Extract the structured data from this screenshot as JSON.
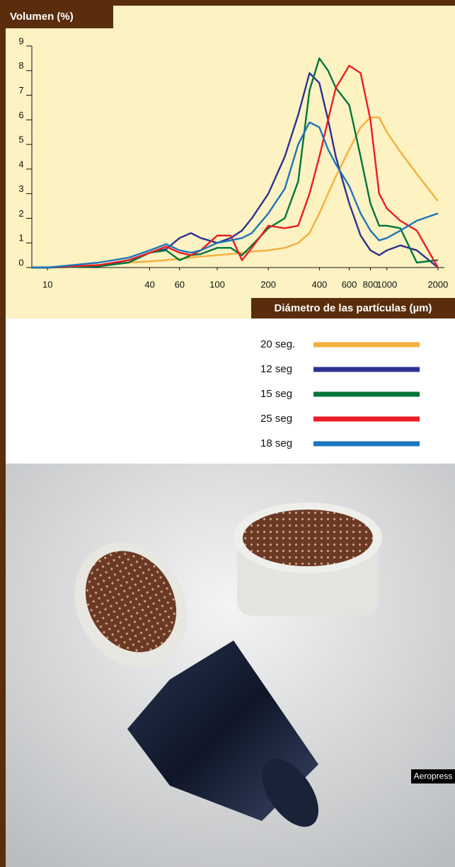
{
  "chart_data": {
    "type": "line",
    "ylabel": "Volumen (%)",
    "xlabel": "Diámetro de las partículas (µm)",
    "xscale": "log",
    "xlim": [
      8,
      2100
    ],
    "ylim": [
      0,
      9
    ],
    "xticks": [
      10,
      40,
      60,
      100,
      200,
      400,
      600,
      800,
      1000,
      2000
    ],
    "yticks": [
      0,
      1,
      2,
      3,
      4,
      5,
      6,
      7,
      8,
      9
    ],
    "grid": false,
    "legend": "below",
    "x": [
      8,
      10,
      20,
      30,
      40,
      50,
      60,
      70,
      80,
      100,
      120,
      140,
      160,
      200,
      250,
      300,
      350,
      400,
      450,
      500,
      600,
      700,
      800,
      900,
      1000,
      1200,
      1500,
      2000
    ],
    "series": [
      {
        "name": "20 seg.",
        "color": "#f5ae3c",
        "values": [
          0,
          0,
          0.1,
          0.2,
          0.25,
          0.3,
          0.35,
          0.4,
          0.45,
          0.5,
          0.55,
          0.6,
          0.65,
          0.7,
          0.8,
          1.0,
          1.4,
          2.2,
          3.0,
          3.7,
          4.8,
          5.7,
          6.1,
          6.1,
          5.5,
          4.7,
          3.8,
          2.7
        ]
      },
      {
        "name": "12 seg",
        "color": "#2e3192",
        "values": [
          0,
          0,
          0.05,
          0.3,
          0.6,
          0.75,
          1.2,
          1.4,
          1.2,
          1.0,
          1.2,
          1.5,
          2.0,
          3.0,
          4.5,
          6.2,
          7.9,
          7.5,
          6.0,
          4.5,
          2.6,
          1.3,
          0.7,
          0.5,
          0.7,
          0.9,
          0.7,
          0
        ]
      },
      {
        "name": "15 seg",
        "color": "#00753a",
        "values": [
          0,
          0,
          0.05,
          0.2,
          0.6,
          0.7,
          0.3,
          0.5,
          0.55,
          0.8,
          0.8,
          0.5,
          0.9,
          1.6,
          2.0,
          3.5,
          7.2,
          8.5,
          8.0,
          7.3,
          6.6,
          4.5,
          2.6,
          1.7,
          1.7,
          1.6,
          0.2,
          0.3
        ]
      },
      {
        "name": "25 seg",
        "color": "#ed1c24",
        "values": [
          0,
          0,
          0.1,
          0.3,
          0.6,
          0.85,
          0.6,
          0.5,
          0.7,
          1.3,
          1.3,
          0.3,
          0.8,
          1.7,
          1.6,
          1.7,
          3.0,
          4.5,
          6.0,
          7.3,
          8.2,
          7.9,
          6.0,
          3.0,
          2.4,
          1.9,
          1.5,
          0
        ]
      },
      {
        "name": "18 seg",
        "color": "#1b75bc",
        "values": [
          0,
          0,
          0.2,
          0.4,
          0.7,
          0.95,
          0.7,
          0.6,
          0.7,
          1.0,
          1.1,
          1.2,
          1.4,
          2.2,
          3.2,
          5.0,
          5.9,
          5.7,
          4.8,
          4.2,
          3.3,
          2.2,
          1.5,
          1.1,
          1.2,
          1.5,
          1.9,
          2.2
        ]
      }
    ]
  },
  "photo": {
    "caption": "Aeropress"
  }
}
